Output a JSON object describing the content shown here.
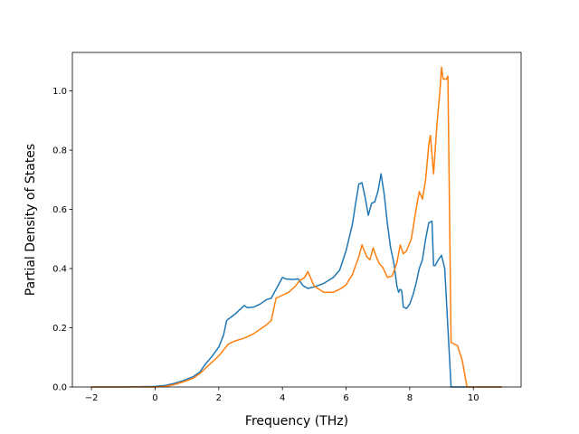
{
  "chart_data": {
    "type": "line",
    "title": "",
    "xlabel": "Frequency (THz)",
    "ylabel": "Partial Density of States",
    "xlim": [
      -2.6,
      11.5
    ],
    "ylim": [
      0.0,
      1.13
    ],
    "xticks": [
      -2,
      0,
      2,
      4,
      6,
      8,
      10
    ],
    "yticks": [
      0.0,
      0.2,
      0.4,
      0.6,
      0.8,
      1.0
    ],
    "xtick_labels": [
      "−2",
      "0",
      "2",
      "4",
      "6",
      "8",
      "10"
    ],
    "ytick_labels": [
      "0.0",
      "0.2",
      "0.4",
      "0.6",
      "0.8",
      "1.0"
    ],
    "grid": false,
    "legend": "none",
    "series": [
      {
        "color": "#1f77b4",
        "x": [
          -2.0,
          -1.0,
          0.0,
          0.3,
          0.6,
          0.9,
          1.2,
          1.4,
          1.6,
          1.8,
          2.0,
          2.15,
          2.25,
          2.5,
          2.8,
          2.9,
          3.1,
          3.3,
          3.5,
          3.65,
          3.8,
          3.9,
          4.0,
          4.1,
          4.3,
          4.5,
          4.65,
          4.8,
          5.0,
          5.3,
          5.6,
          5.8,
          6.0,
          6.2,
          6.3,
          6.4,
          6.5,
          6.6,
          6.7,
          6.8,
          6.9,
          7.0,
          7.1,
          7.2,
          7.3,
          7.4,
          7.5,
          7.6,
          7.65,
          7.7,
          7.75,
          7.8,
          7.9,
          8.0,
          8.1,
          8.2,
          8.3,
          8.4,
          8.5,
          8.6,
          8.7,
          8.75,
          8.8,
          8.9,
          9.0,
          9.1,
          9.2,
          9.3,
          9.4,
          9.6,
          10.0,
          10.9
        ],
        "y": [
          0.0,
          0.0,
          0.002,
          0.005,
          0.012,
          0.022,
          0.035,
          0.05,
          0.08,
          0.105,
          0.135,
          0.175,
          0.225,
          0.245,
          0.275,
          0.268,
          0.27,
          0.28,
          0.295,
          0.3,
          0.33,
          0.35,
          0.37,
          0.365,
          0.363,
          0.365,
          0.342,
          0.333,
          0.338,
          0.35,
          0.37,
          0.395,
          0.46,
          0.55,
          0.62,
          0.685,
          0.69,
          0.64,
          0.58,
          0.62,
          0.625,
          0.66,
          0.72,
          0.65,
          0.55,
          0.47,
          0.42,
          0.34,
          0.32,
          0.33,
          0.325,
          0.27,
          0.265,
          0.28,
          0.31,
          0.35,
          0.4,
          0.43,
          0.5,
          0.555,
          0.56,
          0.41,
          0.41,
          0.43,
          0.445,
          0.4,
          0.2,
          0.0,
          0.0,
          0.0,
          0.0,
          0.0
        ]
      },
      {
        "color": "#ff7f0e",
        "x": [
          -2.0,
          -1.0,
          0.0,
          0.3,
          0.6,
          0.9,
          1.2,
          1.4,
          1.6,
          1.8,
          2.0,
          2.15,
          2.3,
          2.5,
          2.8,
          3.1,
          3.3,
          3.5,
          3.65,
          3.8,
          4.0,
          4.2,
          4.4,
          4.55,
          4.7,
          4.8,
          5.0,
          5.3,
          5.6,
          5.8,
          6.0,
          6.2,
          6.4,
          6.5,
          6.65,
          6.75,
          6.85,
          6.95,
          7.05,
          7.15,
          7.3,
          7.45,
          7.6,
          7.7,
          7.8,
          7.9,
          8.05,
          8.2,
          8.3,
          8.4,
          8.5,
          8.6,
          8.65,
          8.75,
          8.85,
          8.95,
          9.0,
          9.05,
          9.15,
          9.2,
          9.3,
          9.5,
          9.65,
          9.8,
          9.95,
          10.5,
          10.9
        ],
        "y": [
          0.0,
          0.0,
          0.0,
          0.002,
          0.008,
          0.018,
          0.03,
          0.045,
          0.065,
          0.085,
          0.105,
          0.125,
          0.145,
          0.155,
          0.165,
          0.18,
          0.195,
          0.21,
          0.225,
          0.3,
          0.31,
          0.32,
          0.34,
          0.36,
          0.37,
          0.39,
          0.34,
          0.32,
          0.32,
          0.33,
          0.345,
          0.38,
          0.44,
          0.48,
          0.44,
          0.43,
          0.47,
          0.44,
          0.415,
          0.405,
          0.37,
          0.375,
          0.42,
          0.48,
          0.45,
          0.46,
          0.5,
          0.6,
          0.66,
          0.635,
          0.7,
          0.82,
          0.85,
          0.72,
          0.88,
          1.0,
          1.08,
          1.04,
          1.04,
          1.05,
          0.15,
          0.14,
          0.09,
          0.0,
          0.0,
          0.0,
          0.0
        ]
      }
    ]
  }
}
